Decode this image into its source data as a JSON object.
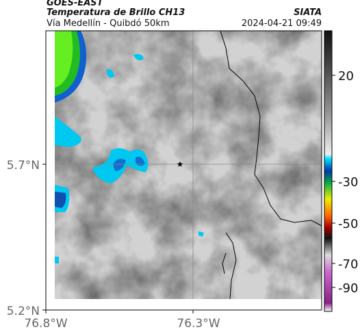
{
  "header": {
    "satellite": "GOES-EAST",
    "product": "Temperatura de Brillo CH13",
    "source": "SIATA",
    "region": "Vía Medellín - Quibdó 50km",
    "datetime": "2024-04-21 09:49"
  },
  "map": {
    "lat_labels": [
      "5.7°N",
      "5.2°N"
    ],
    "lon_labels": [
      "76.8°W",
      "76.3°W"
    ]
  },
  "colorbar": {
    "labels": [
      "20",
      "-30",
      "-50",
      "-70",
      "-90"
    ]
  }
}
